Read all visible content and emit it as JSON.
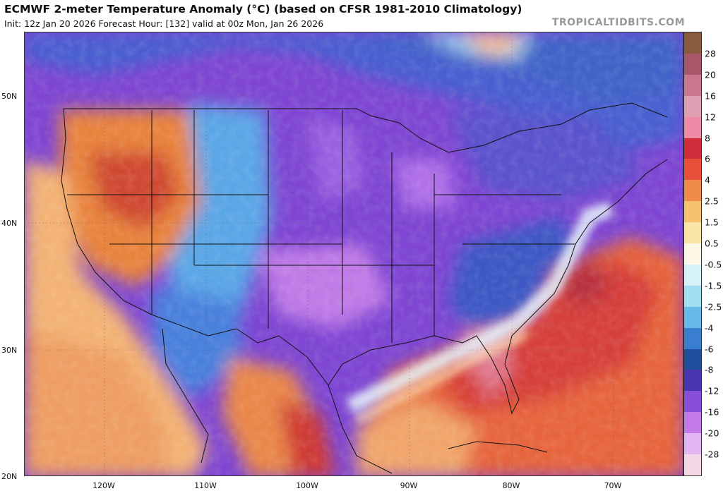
{
  "header": {
    "title": "ECMWF 2-meter Temperature Anomaly (°C) (based on CFSR 1981-2010 Climatology)",
    "subtitle": "Init: 12z Jan 20 2026   Forecast Hour: [132]   valid at 00z Mon, Jan 26 2026",
    "brand": "TROPICALTIDBITS.COM"
  },
  "axes": {
    "lat_labels": [
      "50N",
      "40N",
      "30N",
      "20N"
    ],
    "lon_labels": [
      "120W",
      "110W",
      "100W",
      "90W",
      "80W",
      "70W"
    ]
  },
  "colorbar": {
    "labels": [
      "28",
      "20",
      "16",
      "12",
      "8",
      "6",
      "4",
      "2.5",
      "1.5",
      "0.5",
      "-0.5",
      "-1.5",
      "-2.5",
      "-4",
      "-6",
      "-8",
      "-12",
      "-16",
      "-20",
      "-28"
    ],
    "colors": [
      "#8a5a3c",
      "#a8576a",
      "#c9788e",
      "#de9fb3",
      "#ef8aa6",
      "#cf2c3a",
      "#e8503a",
      "#ef8a48",
      "#f6c26e",
      "#fbe5a6",
      "#fdf7e7",
      "#d6f1f7",
      "#9fdff0",
      "#66b9e8",
      "#3a7fcf",
      "#1f4f9c",
      "#4a35b0",
      "#8a4fd8",
      "#c37ae8",
      "#e3b5f2",
      "#f5d8e8"
    ]
  }
}
